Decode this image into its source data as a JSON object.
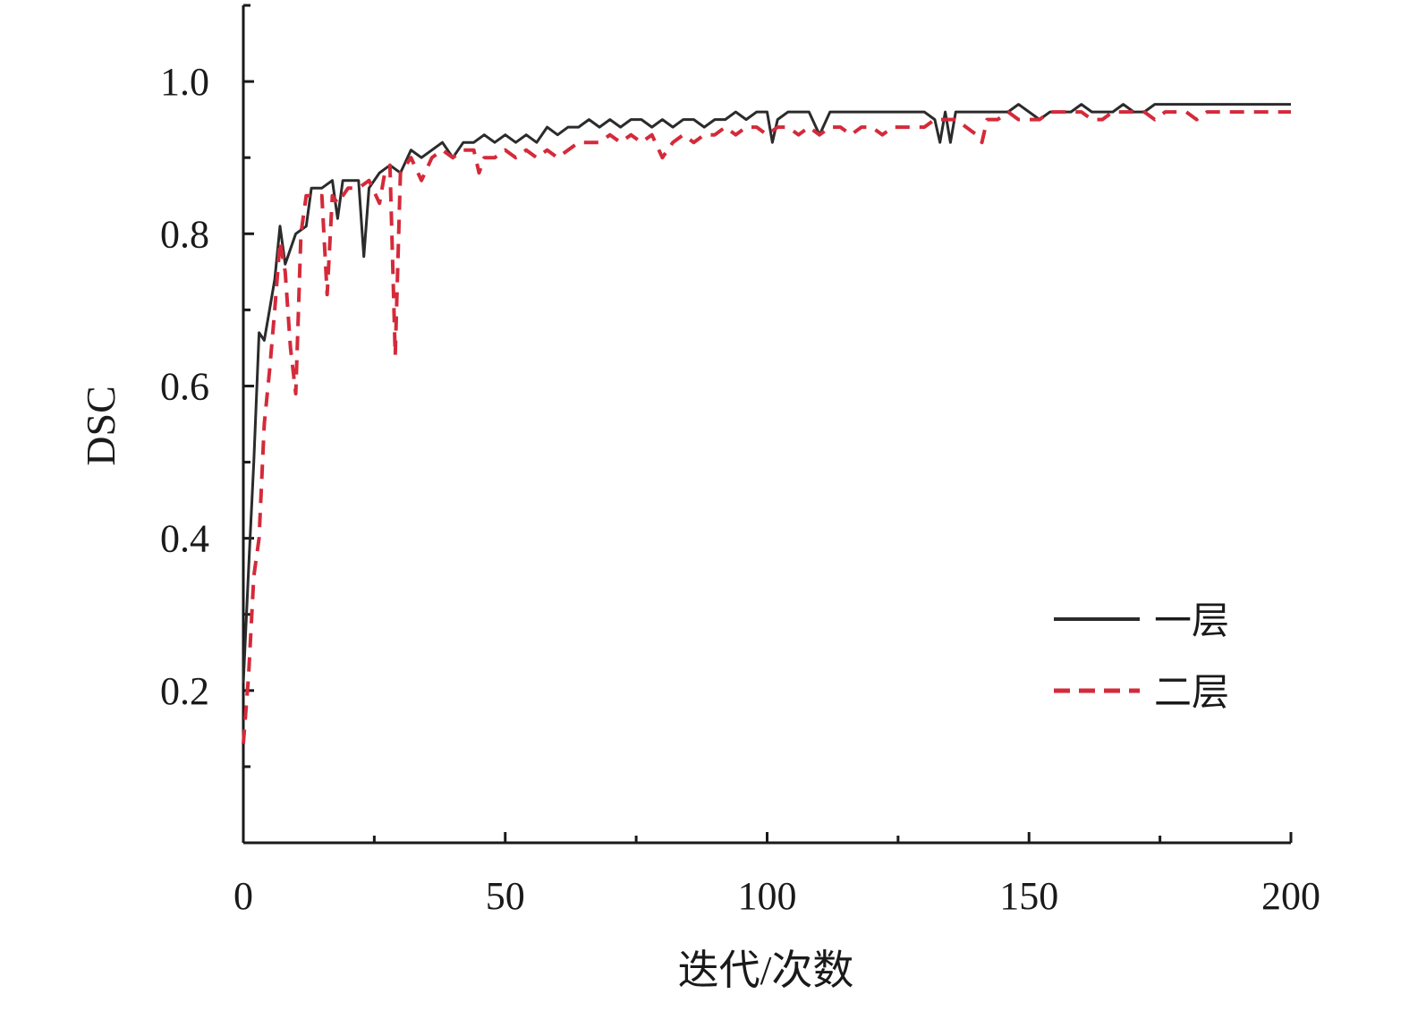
{
  "chart_data": {
    "type": "line",
    "xlabel": "迭代/次数",
    "ylabel": "DSC",
    "xlim": [
      0,
      200
    ],
    "ylim": [
      0,
      1.1
    ],
    "xticks": [
      0,
      50,
      100,
      150,
      200
    ],
    "xtick_labels": [
      "0",
      "50",
      "100",
      "150",
      "200"
    ],
    "yticks": [
      0.2,
      0.4,
      0.6,
      0.8,
      1.0
    ],
    "ytick_labels": [
      "0.2",
      "0.4",
      "0.6",
      "0.8",
      "1.0"
    ],
    "grid": false,
    "legend_position": "bottom-right",
    "series": [
      {
        "name": "一层",
        "color": "#2b2b2b",
        "style": "solid",
        "points": [
          [
            0,
            0.21
          ],
          [
            1,
            0.36
          ],
          [
            2,
            0.5
          ],
          [
            3,
            0.67
          ],
          [
            4,
            0.66
          ],
          [
            5,
            0.7
          ],
          [
            6,
            0.74
          ],
          [
            7,
            0.81
          ],
          [
            8,
            0.76
          ],
          [
            9,
            0.78
          ],
          [
            10,
            0.8
          ],
          [
            12,
            0.81
          ],
          [
            13,
            0.86
          ],
          [
            15,
            0.86
          ],
          [
            17,
            0.87
          ],
          [
            18,
            0.82
          ],
          [
            19,
            0.87
          ],
          [
            22,
            0.87
          ],
          [
            23,
            0.77
          ],
          [
            24,
            0.86
          ],
          [
            26,
            0.88
          ],
          [
            28,
            0.89
          ],
          [
            30,
            0.88
          ],
          [
            32,
            0.91
          ],
          [
            34,
            0.9
          ],
          [
            36,
            0.91
          ],
          [
            38,
            0.92
          ],
          [
            40,
            0.9
          ],
          [
            42,
            0.92
          ],
          [
            44,
            0.92
          ],
          [
            46,
            0.93
          ],
          [
            48,
            0.92
          ],
          [
            50,
            0.93
          ],
          [
            52,
            0.92
          ],
          [
            54,
            0.93
          ],
          [
            56,
            0.92
          ],
          [
            58,
            0.94
          ],
          [
            60,
            0.93
          ],
          [
            62,
            0.94
          ],
          [
            64,
            0.94
          ],
          [
            66,
            0.95
          ],
          [
            68,
            0.94
          ],
          [
            70,
            0.95
          ],
          [
            72,
            0.94
          ],
          [
            74,
            0.95
          ],
          [
            76,
            0.95
          ],
          [
            78,
            0.94
          ],
          [
            80,
            0.95
          ],
          [
            82,
            0.94
          ],
          [
            84,
            0.95
          ],
          [
            86,
            0.95
          ],
          [
            88,
            0.94
          ],
          [
            90,
            0.95
          ],
          [
            92,
            0.95
          ],
          [
            94,
            0.96
          ],
          [
            96,
            0.95
          ],
          [
            98,
            0.96
          ],
          [
            100,
            0.96
          ],
          [
            101,
            0.92
          ],
          [
            102,
            0.95
          ],
          [
            104,
            0.96
          ],
          [
            106,
            0.96
          ],
          [
            108,
            0.96
          ],
          [
            110,
            0.93
          ],
          [
            112,
            0.96
          ],
          [
            114,
            0.96
          ],
          [
            116,
            0.96
          ],
          [
            118,
            0.96
          ],
          [
            120,
            0.96
          ],
          [
            122,
            0.96
          ],
          [
            124,
            0.96
          ],
          [
            126,
            0.96
          ],
          [
            128,
            0.96
          ],
          [
            130,
            0.96
          ],
          [
            132,
            0.95
          ],
          [
            133,
            0.92
          ],
          [
            134,
            0.96
          ],
          [
            135,
            0.92
          ],
          [
            136,
            0.96
          ],
          [
            138,
            0.96
          ],
          [
            140,
            0.96
          ],
          [
            142,
            0.96
          ],
          [
            144,
            0.96
          ],
          [
            146,
            0.96
          ],
          [
            148,
            0.97
          ],
          [
            150,
            0.96
          ],
          [
            152,
            0.95
          ],
          [
            154,
            0.96
          ],
          [
            156,
            0.96
          ],
          [
            158,
            0.96
          ],
          [
            160,
            0.97
          ],
          [
            162,
            0.96
          ],
          [
            164,
            0.96
          ],
          [
            166,
            0.96
          ],
          [
            168,
            0.97
          ],
          [
            170,
            0.96
          ],
          [
            172,
            0.96
          ],
          [
            174,
            0.97
          ],
          [
            176,
            0.97
          ],
          [
            178,
            0.97
          ],
          [
            180,
            0.97
          ],
          [
            182,
            0.97
          ],
          [
            184,
            0.97
          ],
          [
            186,
            0.97
          ],
          [
            188,
            0.97
          ],
          [
            190,
            0.97
          ],
          [
            192,
            0.97
          ],
          [
            194,
            0.97
          ],
          [
            196,
            0.97
          ],
          [
            198,
            0.97
          ],
          [
            200,
            0.97
          ]
        ]
      },
      {
        "name": "二层",
        "color": "#d42a3a",
        "style": "dashed",
        "points": [
          [
            0,
            0.13
          ],
          [
            1,
            0.22
          ],
          [
            2,
            0.35
          ],
          [
            3,
            0.4
          ],
          [
            4,
            0.55
          ],
          [
            5,
            0.62
          ],
          [
            6,
            0.7
          ],
          [
            7,
            0.79
          ],
          [
            8,
            0.75
          ],
          [
            9,
            0.65
          ],
          [
            10,
            0.59
          ],
          [
            11,
            0.8
          ],
          [
            12,
            0.85
          ],
          [
            14,
            0.85
          ],
          [
            15,
            0.85
          ],
          [
            16,
            0.72
          ],
          [
            17,
            0.85
          ],
          [
            18,
            0.84
          ],
          [
            20,
            0.86
          ],
          [
            22,
            0.86
          ],
          [
            24,
            0.87
          ],
          [
            26,
            0.84
          ],
          [
            27,
            0.88
          ],
          [
            28,
            0.89
          ],
          [
            29,
            0.64
          ],
          [
            30,
            0.88
          ],
          [
            32,
            0.9
          ],
          [
            34,
            0.87
          ],
          [
            36,
            0.9
          ],
          [
            38,
            0.91
          ],
          [
            40,
            0.9
          ],
          [
            42,
            0.91
          ],
          [
            44,
            0.91
          ],
          [
            45,
            0.88
          ],
          [
            46,
            0.9
          ],
          [
            48,
            0.9
          ],
          [
            50,
            0.91
          ],
          [
            52,
            0.9
          ],
          [
            54,
            0.91
          ],
          [
            56,
            0.9
          ],
          [
            58,
            0.91
          ],
          [
            60,
            0.9
          ],
          [
            62,
            0.91
          ],
          [
            64,
            0.92
          ],
          [
            66,
            0.92
          ],
          [
            68,
            0.92
          ],
          [
            70,
            0.93
          ],
          [
            72,
            0.92
          ],
          [
            74,
            0.93
          ],
          [
            76,
            0.92
          ],
          [
            78,
            0.93
          ],
          [
            80,
            0.9
          ],
          [
            82,
            0.92
          ],
          [
            84,
            0.93
          ],
          [
            86,
            0.92
          ],
          [
            88,
            0.93
          ],
          [
            90,
            0.93
          ],
          [
            92,
            0.94
          ],
          [
            94,
            0.93
          ],
          [
            96,
            0.94
          ],
          [
            98,
            0.94
          ],
          [
            100,
            0.93
          ],
          [
            102,
            0.94
          ],
          [
            104,
            0.94
          ],
          [
            106,
            0.93
          ],
          [
            108,
            0.94
          ],
          [
            110,
            0.93
          ],
          [
            112,
            0.94
          ],
          [
            114,
            0.94
          ],
          [
            116,
            0.93
          ],
          [
            118,
            0.94
          ],
          [
            120,
            0.94
          ],
          [
            122,
            0.93
          ],
          [
            124,
            0.94
          ],
          [
            126,
            0.94
          ],
          [
            128,
            0.94
          ],
          [
            130,
            0.94
          ],
          [
            132,
            0.95
          ],
          [
            134,
            0.95
          ],
          [
            136,
            0.95
          ],
          [
            138,
            0.94
          ],
          [
            140,
            0.93
          ],
          [
            141,
            0.92
          ],
          [
            142,
            0.95
          ],
          [
            144,
            0.95
          ],
          [
            146,
            0.96
          ],
          [
            148,
            0.95
          ],
          [
            150,
            0.95
          ],
          [
            152,
            0.95
          ],
          [
            154,
            0.96
          ],
          [
            156,
            0.96
          ],
          [
            158,
            0.96
          ],
          [
            160,
            0.96
          ],
          [
            162,
            0.95
          ],
          [
            164,
            0.95
          ],
          [
            166,
            0.96
          ],
          [
            168,
            0.96
          ],
          [
            170,
            0.96
          ],
          [
            172,
            0.96
          ],
          [
            174,
            0.95
          ],
          [
            176,
            0.96
          ],
          [
            178,
            0.96
          ],
          [
            180,
            0.96
          ],
          [
            182,
            0.95
          ],
          [
            184,
            0.96
          ],
          [
            186,
            0.96
          ],
          [
            188,
            0.96
          ],
          [
            190,
            0.96
          ],
          [
            192,
            0.96
          ],
          [
            194,
            0.96
          ],
          [
            196,
            0.96
          ],
          [
            198,
            0.96
          ],
          [
            200,
            0.96
          ]
        ]
      }
    ]
  }
}
